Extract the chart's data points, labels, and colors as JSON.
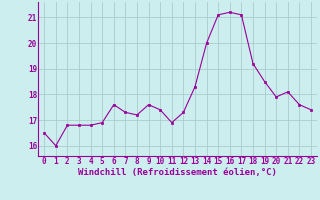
{
  "x": [
    0,
    1,
    2,
    3,
    4,
    5,
    6,
    7,
    8,
    9,
    10,
    11,
    12,
    13,
    14,
    15,
    16,
    17,
    18,
    19,
    20,
    21,
    22,
    23
  ],
  "y": [
    16.5,
    16.0,
    16.8,
    16.8,
    16.8,
    16.9,
    17.6,
    17.3,
    17.2,
    17.6,
    17.4,
    16.9,
    17.3,
    18.3,
    20.0,
    21.1,
    21.2,
    21.1,
    19.2,
    18.5,
    17.9,
    18.1,
    17.6,
    17.4
  ],
  "line_color": "#990099",
  "marker_color": "#990099",
  "bg_color": "#cceeee",
  "grid_color": "#aacccc",
  "xlabel": "Windchill (Refroidissement éolien,°C)",
  "xlabel_color": "#990099",
  "ylim": [
    15.6,
    21.6
  ],
  "xlim": [
    -0.5,
    23.5
  ],
  "yticks": [
    16,
    17,
    18,
    19,
    20,
    21
  ],
  "xticks": [
    0,
    1,
    2,
    3,
    4,
    5,
    6,
    7,
    8,
    9,
    10,
    11,
    12,
    13,
    14,
    15,
    16,
    17,
    18,
    19,
    20,
    21,
    22,
    23
  ],
  "tick_color": "#990099",
  "tick_fontsize": 5.5,
  "xlabel_fontsize": 6.5,
  "line_width": 0.8,
  "marker_size": 2.0
}
